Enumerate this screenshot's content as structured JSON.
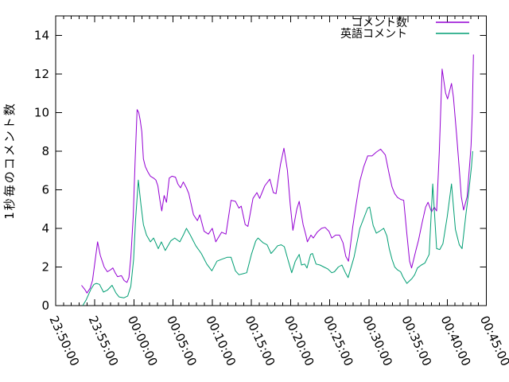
{
  "chart_data": {
    "type": "line",
    "title": "",
    "xlabel": "",
    "ylabel": "1秒毎のコメント数",
    "grid": false,
    "x_axis": {
      "unit": "time (HH:MM:SS), minutes measured after 23:50:00",
      "range_minutes": [
        0,
        55
      ],
      "major_tick_interval_minutes": 5,
      "minor_tick_interval_minutes": 1,
      "tick_labels": [
        "23:50:00",
        "23:55:00",
        "00:00:00",
        "00:05:00",
        "00:10:00",
        "00:15:00",
        "00:20:00",
        "00:25:00",
        "00:30:00",
        "00:35:00",
        "00:40:00",
        "00:45:00"
      ]
    },
    "y_axis": {
      "range": [
        0,
        15
      ],
      "tick_values": [
        0,
        2,
        4,
        6,
        8,
        10,
        12,
        14
      ],
      "tick_labels": [
        "0",
        "2",
        "4",
        "6",
        "8",
        "10",
        "12",
        "14"
      ]
    },
    "legend": {
      "position": "top-right",
      "entries": [
        {
          "label": "コメント数",
          "color": "#9400d3"
        },
        {
          "label": "英語コメント",
          "color": "#009e73"
        }
      ]
    },
    "series": [
      {
        "name": "コメント数",
        "color": "#9400d3",
        "points": [
          [
            3.3,
            1.05
          ],
          [
            3.7,
            0.85
          ],
          [
            4.0,
            0.65
          ],
          [
            4.4,
            0.9
          ],
          [
            4.7,
            1.3
          ],
          [
            5.0,
            2.2
          ],
          [
            5.35,
            3.3
          ],
          [
            5.7,
            2.6
          ],
          [
            6.2,
            2.0
          ],
          [
            6.6,
            1.75
          ],
          [
            7.0,
            1.85
          ],
          [
            7.3,
            1.95
          ],
          [
            7.6,
            1.7
          ],
          [
            7.9,
            1.5
          ],
          [
            8.4,
            1.55
          ],
          [
            8.75,
            1.3
          ],
          [
            9.1,
            1.2
          ],
          [
            9.35,
            1.45
          ],
          [
            9.6,
            2.5
          ],
          [
            9.9,
            4.6
          ],
          [
            10.15,
            7.5
          ],
          [
            10.4,
            10.15
          ],
          [
            10.6,
            10.0
          ],
          [
            10.8,
            9.6
          ],
          [
            11.0,
            9.0
          ],
          [
            11.2,
            7.6
          ],
          [
            11.45,
            7.2
          ],
          [
            11.8,
            6.9
          ],
          [
            12.1,
            6.7
          ],
          [
            12.5,
            6.6
          ],
          [
            12.8,
            6.5
          ],
          [
            13.05,
            6.2
          ],
          [
            13.3,
            5.5
          ],
          [
            13.55,
            4.9
          ],
          [
            13.85,
            5.7
          ],
          [
            14.15,
            5.35
          ],
          [
            14.5,
            6.6
          ],
          [
            14.85,
            6.7
          ],
          [
            15.3,
            6.65
          ],
          [
            15.6,
            6.3
          ],
          [
            15.95,
            6.1
          ],
          [
            16.3,
            6.4
          ],
          [
            16.7,
            6.1
          ],
          [
            17.0,
            5.8
          ],
          [
            17.6,
            4.7
          ],
          [
            18.1,
            4.4
          ],
          [
            18.4,
            4.7
          ],
          [
            18.95,
            3.85
          ],
          [
            19.5,
            3.7
          ],
          [
            20.0,
            4.0
          ],
          [
            20.45,
            3.3
          ],
          [
            21.2,
            3.8
          ],
          [
            21.75,
            3.7
          ],
          [
            22.4,
            5.45
          ],
          [
            22.95,
            5.4
          ],
          [
            23.4,
            5.05
          ],
          [
            23.7,
            5.15
          ],
          [
            24.2,
            4.2
          ],
          [
            24.55,
            4.1
          ],
          [
            25.2,
            5.55
          ],
          [
            25.7,
            5.85
          ],
          [
            26.05,
            5.55
          ],
          [
            26.7,
            6.2
          ],
          [
            27.35,
            6.55
          ],
          [
            27.8,
            5.85
          ],
          [
            28.15,
            5.8
          ],
          [
            28.7,
            7.3
          ],
          [
            29.15,
            8.15
          ],
          [
            29.6,
            7.0
          ],
          [
            29.95,
            5.25
          ],
          [
            30.3,
            3.9
          ],
          [
            30.8,
            5.0
          ],
          [
            31.1,
            5.4
          ],
          [
            31.6,
            4.2
          ],
          [
            31.95,
            3.65
          ],
          [
            32.15,
            3.3
          ],
          [
            32.6,
            3.65
          ],
          [
            32.9,
            3.5
          ],
          [
            33.4,
            3.8
          ],
          [
            33.95,
            4.0
          ],
          [
            34.4,
            4.05
          ],
          [
            34.9,
            3.85
          ],
          [
            35.25,
            3.5
          ],
          [
            35.75,
            3.65
          ],
          [
            36.25,
            3.65
          ],
          [
            36.7,
            3.25
          ],
          [
            37.05,
            2.55
          ],
          [
            37.4,
            2.3
          ],
          [
            37.95,
            4.1
          ],
          [
            38.35,
            5.2
          ],
          [
            38.85,
            6.45
          ],
          [
            39.35,
            7.2
          ],
          [
            39.85,
            7.75
          ],
          [
            40.4,
            7.75
          ],
          [
            40.95,
            7.95
          ],
          [
            41.5,
            8.1
          ],
          [
            42.1,
            7.8
          ],
          [
            42.6,
            6.8
          ],
          [
            42.95,
            6.15
          ],
          [
            43.3,
            5.8
          ],
          [
            43.65,
            5.6
          ],
          [
            44.05,
            5.5
          ],
          [
            44.45,
            5.45
          ],
          [
            44.85,
            3.7
          ],
          [
            45.2,
            2.3
          ],
          [
            45.45,
            1.95
          ],
          [
            46.0,
            2.85
          ],
          [
            46.35,
            3.4
          ],
          [
            46.8,
            4.3
          ],
          [
            47.25,
            5.1
          ],
          [
            47.55,
            5.35
          ],
          [
            48.0,
            4.85
          ],
          [
            48.35,
            5.1
          ],
          [
            48.65,
            4.9
          ],
          [
            49.0,
            8.0
          ],
          [
            49.35,
            12.25
          ],
          [
            49.8,
            11.0
          ],
          [
            50.05,
            10.7
          ],
          [
            50.55,
            11.5
          ],
          [
            50.8,
            10.8
          ],
          [
            51.2,
            8.85
          ],
          [
            51.6,
            6.8
          ],
          [
            51.8,
            5.65
          ],
          [
            52.1,
            4.95
          ],
          [
            52.55,
            5.65
          ],
          [
            52.9,
            7.45
          ],
          [
            53.05,
            8.3
          ],
          [
            53.2,
            9.95
          ],
          [
            53.35,
            13.0
          ]
        ]
      },
      {
        "name": "英語コメント",
        "color": "#009e73",
        "points": [
          [
            3.45,
            0.0
          ],
          [
            3.9,
            0.3
          ],
          [
            4.5,
            0.85
          ],
          [
            4.9,
            1.1
          ],
          [
            5.2,
            1.15
          ],
          [
            5.6,
            1.1
          ],
          [
            6.1,
            0.7
          ],
          [
            6.6,
            0.8
          ],
          [
            7.2,
            1.05
          ],
          [
            7.7,
            0.65
          ],
          [
            8.1,
            0.45
          ],
          [
            8.7,
            0.4
          ],
          [
            9.2,
            0.5
          ],
          [
            9.6,
            1.0
          ],
          [
            9.95,
            2.4
          ],
          [
            10.2,
            4.4
          ],
          [
            10.55,
            6.5
          ],
          [
            10.9,
            5.2
          ],
          [
            11.2,
            4.2
          ],
          [
            11.6,
            3.65
          ],
          [
            12.1,
            3.3
          ],
          [
            12.5,
            3.5
          ],
          [
            13.1,
            2.95
          ],
          [
            13.5,
            3.3
          ],
          [
            14.0,
            2.85
          ],
          [
            14.7,
            3.35
          ],
          [
            15.2,
            3.5
          ],
          [
            15.85,
            3.3
          ],
          [
            16.3,
            3.65
          ],
          [
            16.7,
            4.0
          ],
          [
            17.2,
            3.65
          ],
          [
            17.9,
            3.1
          ],
          [
            18.6,
            2.7
          ],
          [
            19.3,
            2.15
          ],
          [
            19.95,
            1.8
          ],
          [
            20.6,
            2.3
          ],
          [
            21.2,
            2.4
          ],
          [
            21.9,
            2.5
          ],
          [
            22.4,
            2.5
          ],
          [
            22.95,
            1.8
          ],
          [
            23.4,
            1.6
          ],
          [
            23.9,
            1.65
          ],
          [
            24.4,
            1.7
          ],
          [
            25.0,
            2.65
          ],
          [
            25.55,
            3.35
          ],
          [
            25.85,
            3.5
          ],
          [
            26.5,
            3.25
          ],
          [
            27.0,
            3.15
          ],
          [
            27.5,
            2.7
          ],
          [
            27.85,
            2.85
          ],
          [
            28.35,
            3.1
          ],
          [
            28.8,
            3.15
          ],
          [
            29.2,
            3.05
          ],
          [
            29.65,
            2.4
          ],
          [
            30.15,
            1.7
          ],
          [
            30.6,
            2.3
          ],
          [
            31.1,
            2.65
          ],
          [
            31.4,
            2.1
          ],
          [
            31.8,
            2.15
          ],
          [
            32.1,
            1.95
          ],
          [
            32.55,
            2.65
          ],
          [
            32.8,
            2.7
          ],
          [
            33.25,
            2.15
          ],
          [
            33.75,
            2.1
          ],
          [
            34.25,
            2.0
          ],
          [
            34.75,
            1.9
          ],
          [
            35.25,
            1.7
          ],
          [
            35.6,
            1.75
          ],
          [
            36.1,
            2.0
          ],
          [
            36.55,
            2.1
          ],
          [
            37.0,
            1.7
          ],
          [
            37.35,
            1.45
          ],
          [
            38.1,
            2.5
          ],
          [
            38.85,
            4.0
          ],
          [
            39.85,
            5.05
          ],
          [
            40.1,
            5.1
          ],
          [
            40.55,
            4.15
          ],
          [
            40.95,
            3.75
          ],
          [
            41.35,
            3.85
          ],
          [
            41.9,
            4.0
          ],
          [
            42.3,
            3.6
          ],
          [
            42.6,
            2.95
          ],
          [
            42.95,
            2.4
          ],
          [
            43.3,
            2.0
          ],
          [
            43.65,
            1.85
          ],
          [
            44.05,
            1.75
          ],
          [
            44.4,
            1.45
          ],
          [
            44.85,
            1.15
          ],
          [
            45.5,
            1.4
          ],
          [
            45.85,
            1.6
          ],
          [
            46.2,
            1.95
          ],
          [
            46.7,
            2.1
          ],
          [
            47.15,
            2.2
          ],
          [
            47.7,
            2.65
          ],
          [
            48.15,
            6.3
          ],
          [
            48.65,
            2.95
          ],
          [
            49.05,
            2.9
          ],
          [
            49.45,
            3.2
          ],
          [
            50.0,
            4.6
          ],
          [
            50.55,
            6.3
          ],
          [
            51.05,
            3.95
          ],
          [
            51.55,
            3.15
          ],
          [
            51.9,
            2.95
          ],
          [
            52.4,
            4.75
          ],
          [
            52.75,
            5.85
          ],
          [
            53.1,
            7.2
          ],
          [
            53.25,
            8.0
          ]
        ]
      }
    ]
  }
}
